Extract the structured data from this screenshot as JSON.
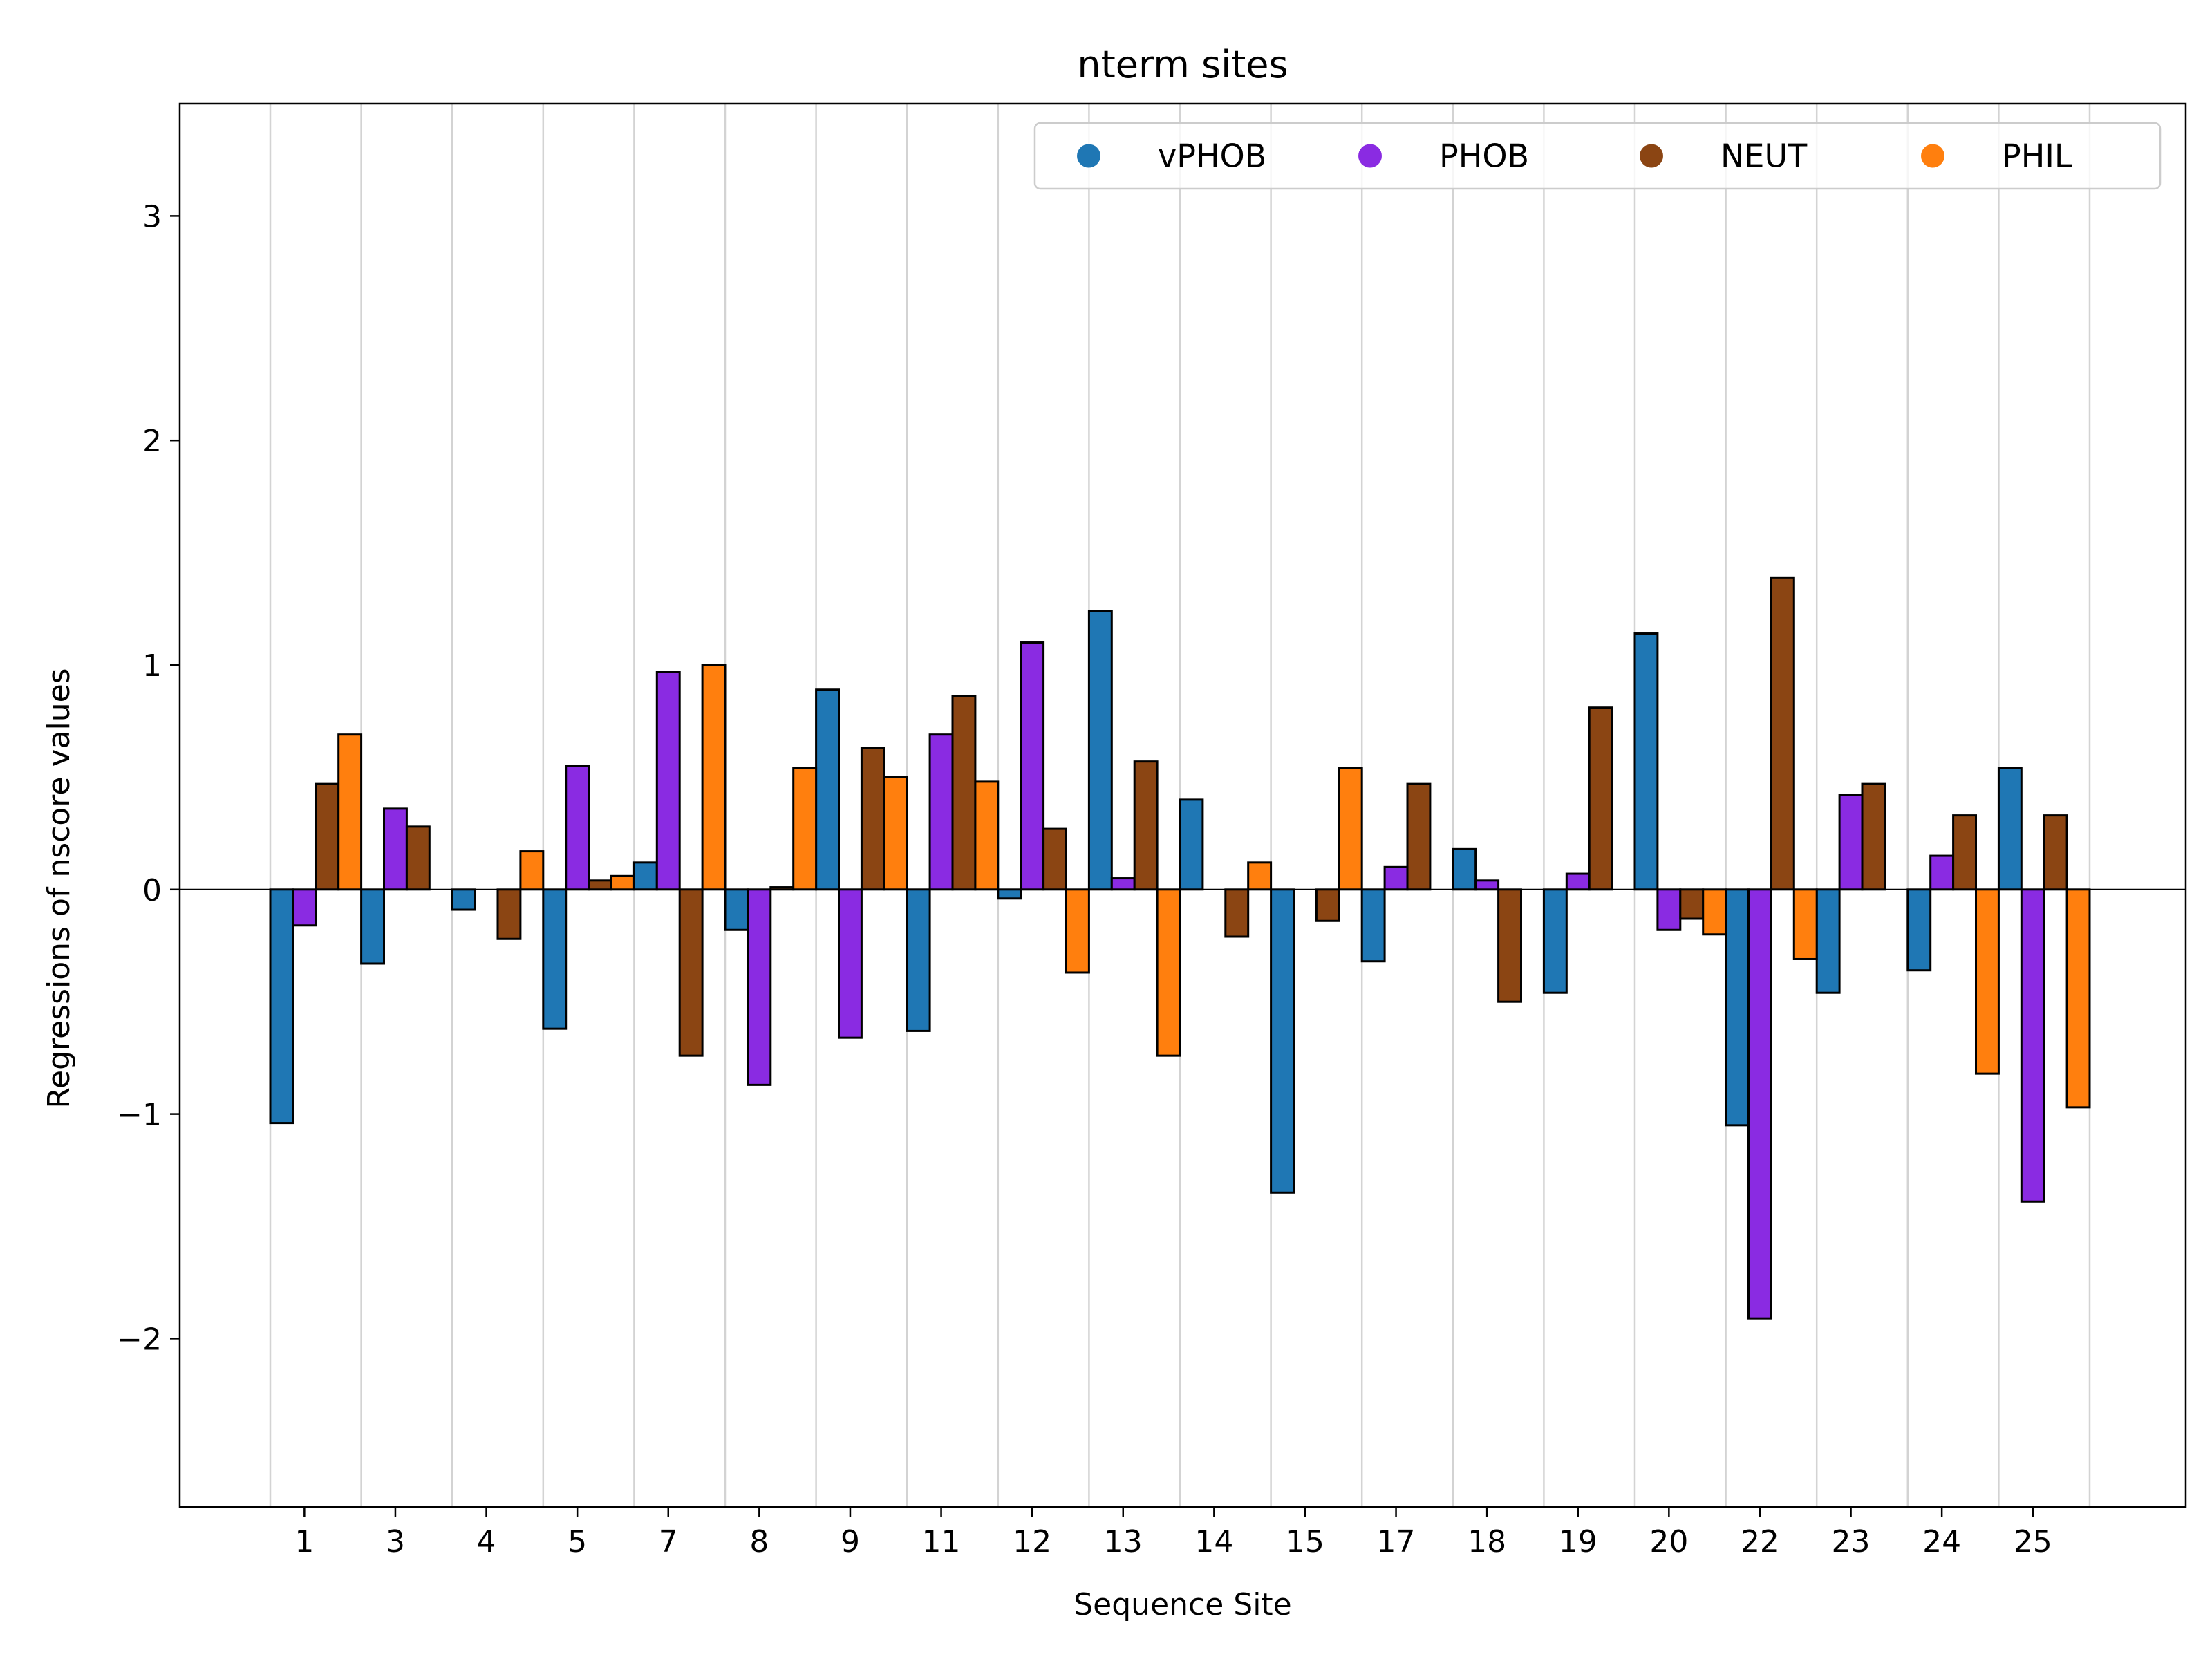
{
  "chart_data": {
    "type": "bar",
    "title": "nterm sites",
    "xlabel": "Sequence Site",
    "ylabel": "Regressions of nscore values",
    "ylim": [
      -2.75,
      3.5
    ],
    "yticks": [
      -2,
      -1,
      0,
      1,
      2,
      3
    ],
    "ytick_labels": [
      "−2",
      "−1",
      "0",
      "1",
      "2",
      "3"
    ],
    "categories": [
      "1",
      "3",
      "4",
      "5",
      "7",
      "8",
      "9",
      "11",
      "12",
      "13",
      "14",
      "15",
      "17",
      "18",
      "19",
      "20",
      "22",
      "23",
      "24",
      "25"
    ],
    "grid": "vertical lines between sites",
    "legend_position": "top-right",
    "series": [
      {
        "name": "vPHOB",
        "color": "#1f77b4",
        "values": [
          -1.04,
          -0.33,
          -0.09,
          -0.62,
          0.12,
          -0.18,
          0.89,
          -0.63,
          -0.04,
          1.24,
          0.4,
          -1.35,
          -0.32,
          0.18,
          -0.46,
          1.14,
          -1.05,
          -0.46,
          -0.36,
          0.54
        ]
      },
      {
        "name": "PHOB",
        "color": "#8a2be2",
        "values": [
          -0.16,
          0.36,
          0.0,
          0.55,
          0.97,
          -0.87,
          -0.66,
          0.69,
          1.1,
          0.05,
          0.0,
          0.0,
          0.1,
          0.04,
          0.07,
          -0.18,
          -1.91,
          0.42,
          0.15,
          -1.39
        ]
      },
      {
        "name": "NEUT",
        "color": "#8b4513",
        "values": [
          0.47,
          0.28,
          -0.22,
          0.04,
          -0.74,
          0.01,
          0.63,
          0.86,
          0.27,
          0.57,
          -0.21,
          -0.14,
          0.47,
          -0.5,
          0.81,
          -0.13,
          1.39,
          0.47,
          0.33,
          0.33
        ]
      },
      {
        "name": "PHIL",
        "color": "#ff7f0e",
        "values": [
          0.69,
          0.0,
          0.17,
          0.06,
          1.0,
          0.54,
          0.5,
          0.48,
          -0.37,
          -0.74,
          0.12,
          0.54,
          0.0,
          0.0,
          0.0,
          -0.2,
          -0.31,
          0.0,
          -0.82,
          -0.97
        ]
      }
    ]
  }
}
